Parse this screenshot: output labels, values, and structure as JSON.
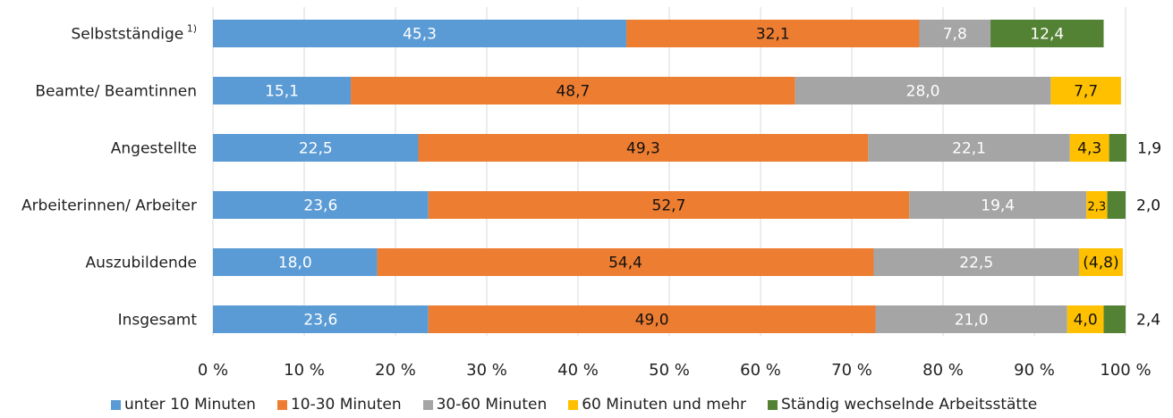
{
  "chart_data": {
    "type": "bar",
    "orientation": "horizontal",
    "stacked": true,
    "categories": [
      "Selbstständige",
      "Beamte/ Beamtinnen",
      "Angestellte",
      "Arbeiterinnen/ Arbeiter",
      "Auszubildende",
      "Insgesamt"
    ],
    "category_footnotes": [
      "1)",
      "",
      "",
      "",
      "",
      ""
    ],
    "series": [
      {
        "name": "unter 10 Minuten",
        "color": "#5B9BD5",
        "values": [
          45.3,
          15.1,
          22.5,
          23.6,
          18.0,
          23.6
        ],
        "labels": [
          "45,3",
          "15,1",
          "22,5",
          "23,6",
          "18,0",
          "23,6"
        ]
      },
      {
        "name": "10-30 Minuten",
        "color": "#ED7D31",
        "values": [
          32.1,
          48.7,
          49.3,
          52.7,
          54.4,
          49.0
        ],
        "labels": [
          "32,1",
          "48,7",
          "49,3",
          "52,7",
          "54,4",
          "49,0"
        ]
      },
      {
        "name": "30-60 Minuten",
        "color": "#A5A5A5",
        "values": [
          7.8,
          28.0,
          22.1,
          19.4,
          22.5,
          21.0
        ],
        "labels": [
          "7,8",
          "28,0",
          "22,1",
          "19,4",
          "22,5",
          "21,0"
        ]
      },
      {
        "name": "60 Minuten und mehr",
        "color": "#FFC000",
        "values": [
          0,
          7.7,
          4.3,
          2.3,
          4.8,
          4.0
        ],
        "labels": [
          "",
          "7,7",
          "4,3",
          "2,3",
          "(4,8)",
          "4,0"
        ]
      },
      {
        "name": "Ständig wechselnde Arbeitsstätte",
        "color": "#548235",
        "values": [
          12.4,
          0,
          1.9,
          2.0,
          0,
          2.4
        ],
        "labels": [
          "12,4",
          "",
          "1,9",
          "2,0",
          "",
          "2,4"
        ]
      }
    ],
    "xlim": [
      0,
      100
    ],
    "xticks": [
      "0 %",
      "10 %",
      "20 %",
      "30 %",
      "40 %",
      "50 %",
      "60 %",
      "70 %",
      "80 %",
      "90 %",
      "100 %"
    ],
    "grid": "vertical",
    "legend": "bottom"
  }
}
